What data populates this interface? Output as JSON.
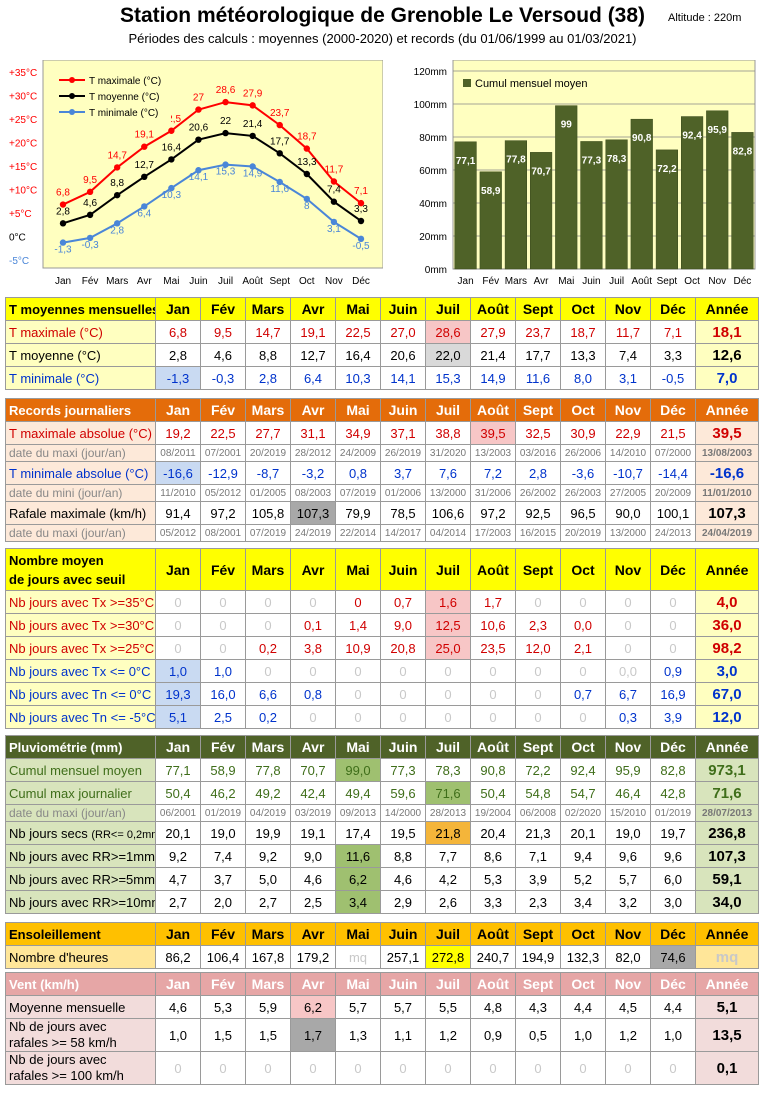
{
  "header": {
    "title": "Station météorologique de Grenoble Le Versoud (38)",
    "subtitle": "Périodes des calculs : moyennes (2000-2020) et records (du 01/06/1999 au 01/03/2021)",
    "altitude": "Altitude : 220m"
  },
  "months": [
    "Jan",
    "Fév",
    "Mars",
    "Avr",
    "Mai",
    "Juin",
    "Juil",
    "Août",
    "Sept",
    "Oct",
    "Nov",
    "Déc"
  ],
  "year_label": "Année",
  "chart_data": [
    {
      "type": "line",
      "categories": [
        "Jan",
        "Fév",
        "Mars",
        "Avr",
        "Mai",
        "Juin",
        "Juil",
        "Août",
        "Sept",
        "Oct",
        "Nov",
        "Déc"
      ],
      "series": [
        {
          "name": "T maximale (°C)",
          "color": "#ff0000",
          "values": [
            6.8,
            9.5,
            14.7,
            19.1,
            22.5,
            27.0,
            28.6,
            27.9,
            23.7,
            18.7,
            11.7,
            7.1
          ]
        },
        {
          "name": "T moyenne (°C)",
          "color": "#000000",
          "values": [
            2.8,
            4.6,
            8.8,
            12.7,
            16.4,
            20.6,
            22.0,
            21.4,
            17.7,
            13.3,
            7.4,
            3.3
          ]
        },
        {
          "name": "T minimale (°C)",
          "color": "#4a86d8",
          "values": [
            -1.3,
            -0.3,
            2.8,
            6.4,
            10.3,
            14.1,
            15.3,
            14.9,
            11.6,
            8.0,
            3.1,
            -0.5
          ]
        }
      ],
      "ylim": [
        -5,
        35
      ],
      "yticks": [
        "-5°C",
        "0°C",
        "+5°C",
        "+10°C",
        "+15°C",
        "+20°C",
        "+25°C",
        "+30°C",
        "+35°C"
      ],
      "legend": "top-left",
      "background": "#ffffc0"
    },
    {
      "type": "bar",
      "categories": [
        "Jan",
        "Fév",
        "Mars",
        "Avr",
        "Mai",
        "Juin",
        "Juil",
        "Août",
        "Sept",
        "Oct",
        "Nov",
        "Déc"
      ],
      "series": [
        {
          "name": "Cumul mensuel moyen",
          "color": "#4f6228",
          "values": [
            77.1,
            58.9,
            77.8,
            70.7,
            99.0,
            77.3,
            78.3,
            90.8,
            72.2,
            92.4,
            95.9,
            82.8
          ]
        }
      ],
      "ylim": [
        0,
        120
      ],
      "yticks": [
        "0mm",
        "20mm",
        "40mm",
        "60mm",
        "80mm",
        "100mm",
        "120mm"
      ],
      "legend": "top-left",
      "background": "#ffffc0"
    }
  ],
  "sections": [
    {
      "key": "tmoy",
      "title": "T moyennes mensuelles",
      "header_bg": "#ffff00",
      "header_color": "#000000",
      "lbl_bg": "#ffffc0",
      "ann_bg": "#ffffc0",
      "top": 297,
      "rows": [
        {
          "label": "T maximale (°C)",
          "cls": "red",
          "vals": [
            "6,8",
            "9,5",
            "14,7",
            "19,1",
            "22,5",
            "27,0",
            "28,6",
            "27,9",
            "23,7",
            "18,7",
            "11,7",
            "7,1"
          ],
          "annee": "18,1",
          "hl": {
            "6": "hl-red"
          }
        },
        {
          "label": "T moyenne (°C)",
          "cls": "",
          "vals": [
            "2,8",
            "4,6",
            "8,8",
            "12,7",
            "16,4",
            "20,6",
            "22,0",
            "21,4",
            "17,7",
            "13,3",
            "7,4",
            "3,3"
          ],
          "annee": "12,6",
          "hl": {
            "6": "hl-lgrey"
          }
        },
        {
          "label": "T minimale (°C)",
          "cls": "blue",
          "vals": [
            "-1,3",
            "-0,3",
            "2,8",
            "6,4",
            "10,3",
            "14,1",
            "15,3",
            "14,9",
            "11,6",
            "8,0",
            "3,1",
            "-0,5"
          ],
          "annee": "7,0",
          "hl": {
            "0": "hl-blue"
          }
        }
      ]
    },
    {
      "key": "records",
      "title": "Records journaliers",
      "header_bg": "#e46c0a",
      "header_color": "#ffffff",
      "lbl_bg": "#fde9d9",
      "ann_bg": "#fde9d9",
      "top": 398,
      "rows": [
        {
          "label": "T maximale absolue (°C)",
          "cls": "red",
          "vals": [
            "19,2",
            "22,5",
            "27,7",
            "31,1",
            "34,9",
            "37,1",
            "38,8",
            "39,5",
            "32,5",
            "30,9",
            "22,9",
            "21,5"
          ],
          "annee": "39,5",
          "hl": {
            "7": "hl-red"
          }
        },
        {
          "label": "date du maxi (jour/an)",
          "dates": true,
          "vals": [
            "08/2011",
            "07/2001",
            "20/2019",
            "28/2012",
            "24/2009",
            "26/2019",
            "31/2020",
            "13/2003",
            "03/2016",
            "26/2006",
            "14/2010",
            "07/2000"
          ],
          "annee": "13/08/2003"
        },
        {
          "label": "T minimale absolue (°C)",
          "cls": "blue",
          "vals": [
            "-16,6",
            "-12,9",
            "-8,7",
            "-3,2",
            "0,8",
            "3,7",
            "7,6",
            "7,2",
            "2,8",
            "-3,6",
            "-10,7",
            "-14,4"
          ],
          "annee": "-16,6",
          "hl": {
            "0": "hl-blue"
          }
        },
        {
          "label": "date du mini (jour/an)",
          "dates": true,
          "vals": [
            "11/2010",
            "05/2012",
            "01/2005",
            "08/2003",
            "07/2019",
            "01/2006",
            "13/2000",
            "31/2006",
            "26/2002",
            "26/2003",
            "27/2005",
            "20/2009"
          ],
          "annee": "11/01/2010"
        },
        {
          "label": "Rafale maximale (km/h)",
          "cls": "",
          "vals": [
            "91,4",
            "97,2",
            "105,8",
            "107,3",
            "79,9",
            "78,5",
            "106,6",
            "97,2",
            "92,5",
            "96,5",
            "90,0",
            "100,1"
          ],
          "annee": "107,3",
          "hl": {
            "3": "hl-grey"
          }
        },
        {
          "label": "date du maxi (jour/an)",
          "dates": true,
          "vals": [
            "05/2012",
            "08/2001",
            "07/2019",
            "24/2019",
            "22/2014",
            "14/2017",
            "04/2014",
            "17/2003",
            "16/2015",
            "20/2019",
            "13/2000",
            "24/2013"
          ],
          "annee": "24/04/2019"
        }
      ]
    },
    {
      "key": "seuil",
      "title": "Nombre moyen de jours avec seuil",
      "title2": "de jours avec seuil",
      "title1": "Nombre moyen",
      "header_bg": "#ffff00",
      "header_color": "#000000",
      "lbl_bg": "#ffffc0",
      "ann_bg": "#ffffc0",
      "top": 548,
      "rows": [
        {
          "label": "Nb jours avec Tx >=35°C",
          "cls": "red",
          "vals": [
            "0",
            "0",
            "0",
            "0",
            "0",
            "0,7",
            "1,6",
            "1,7",
            "0",
            "0",
            "0",
            "0"
          ],
          "annee": "4,0",
          "hl": {
            "6": "hl-red"
          },
          "zero_grey": [
            0,
            1,
            2,
            3,
            8,
            9,
            10,
            11
          ]
        },
        {
          "label": "Nb jours avec Tx >=30°C",
          "cls": "red",
          "vals": [
            "0",
            "0",
            "0",
            "0,1",
            "1,4",
            "9,0",
            "12,5",
            "10,6",
            "2,3",
            "0,0",
            "0",
            "0"
          ],
          "annee": "36,0",
          "hl": {
            "6": "hl-red"
          },
          "zero_grey": [
            0,
            1,
            2,
            10,
            11
          ]
        },
        {
          "label": "Nb jours avec Tx >=25°C",
          "cls": "red",
          "vals": [
            "0",
            "0",
            "0,2",
            "3,8",
            "10,9",
            "20,8",
            "25,0",
            "23,5",
            "12,0",
            "2,1",
            "0",
            "0"
          ],
          "annee": "98,2",
          "hl": {
            "6": "hl-red"
          },
          "zero_grey": [
            0,
            1,
            10,
            11
          ]
        },
        {
          "label": "Nb jours avec Tx <= 0°C",
          "cls": "blue",
          "vals": [
            "1,0",
            "1,0",
            "0",
            "0",
            "0",
            "0",
            "0",
            "0",
            "0",
            "0",
            "0,0",
            "0,9"
          ],
          "annee": "3,0",
          "hl": {
            "0": "hl-blue"
          },
          "zero_grey": [
            2,
            3,
            4,
            5,
            6,
            7,
            8,
            9,
            10
          ]
        },
        {
          "label": "Nb jours avec Tn <= 0°C",
          "cls": "blue",
          "vals": [
            "19,3",
            "16,0",
            "6,6",
            "0,8",
            "0",
            "0",
            "0",
            "0",
            "0",
            "0,7",
            "6,7",
            "16,9"
          ],
          "annee": "67,0",
          "hl": {
            "0": "hl-blue"
          },
          "zero_grey": [
            4,
            5,
            6,
            7,
            8
          ]
        },
        {
          "label": "Nb jours avec Tn <= -5°C",
          "cls": "blue",
          "vals": [
            "5,1",
            "2,5",
            "0,2",
            "0",
            "0",
            "0",
            "0",
            "0",
            "0",
            "0",
            "0,3",
            "3,9"
          ],
          "annee": "12,0",
          "hl": {
            "0": "hl-blue"
          },
          "zero_grey": [
            3,
            4,
            5,
            6,
            7,
            8,
            9
          ]
        }
      ]
    },
    {
      "key": "pluvio",
      "title": "Pluviométrie (mm)",
      "header_bg": "#4f6228",
      "header_color": "#ffffff",
      "lbl_bg": "#d8e4bc",
      "ann_bg": "#d8e4bc",
      "top": 735,
      "rows": [
        {
          "label": "Cumul mensuel moyen",
          "cls": "green",
          "vals": [
            "77,1",
            "58,9",
            "77,8",
            "70,7",
            "99,0",
            "77,3",
            "78,3",
            "90,8",
            "72,2",
            "92,4",
            "95,9",
            "82,8"
          ],
          "annee": "973,1",
          "hl": {
            "4": "hl-green"
          }
        },
        {
          "label": "Cumul max journalier",
          "cls": "green",
          "vals": [
            "50,4",
            "46,2",
            "49,2",
            "42,4",
            "49,4",
            "59,6",
            "71,6",
            "50,4",
            "54,8",
            "54,7",
            "46,4",
            "42,8"
          ],
          "annee": "71,6",
          "hl": {
            "6": "hl-green"
          }
        },
        {
          "label": "date du maxi (jour/an)",
          "dates": true,
          "vals": [
            "06/2001",
            "01/2019",
            "04/2019",
            "03/2019",
            "09/2013",
            "14/2000",
            "28/2013",
            "19/2004",
            "06/2008",
            "02/2020",
            "15/2010",
            "01/2019"
          ],
          "annee": "28/07/2013"
        },
        {
          "label": "Nb jours secs",
          "label_small": "(RR<= 0,2mm)",
          "cls": "",
          "vals": [
            "20,1",
            "19,0",
            "19,9",
            "19,1",
            "17,4",
            "19,5",
            "21,8",
            "20,4",
            "21,3",
            "20,1",
            "19,0",
            "19,7"
          ],
          "annee": "236,8",
          "hl": {
            "6": "hl-orange"
          }
        },
        {
          "label": "Nb jours avec RR>=1mm",
          "cls": "",
          "vals": [
            "9,2",
            "7,4",
            "9,2",
            "9,0",
            "11,6",
            "8,8",
            "7,7",
            "8,6",
            "7,1",
            "9,4",
            "9,6",
            "9,6"
          ],
          "annee": "107,3",
          "hl": {
            "4": "hl-green"
          }
        },
        {
          "label": "Nb jours avec RR>=5mm",
          "cls": "",
          "vals": [
            "4,7",
            "3,7",
            "5,0",
            "4,6",
            "6,2",
            "4,6",
            "4,2",
            "5,3",
            "3,9",
            "5,2",
            "5,7",
            "6,0"
          ],
          "annee": "59,1",
          "hl": {
            "4": "hl-green"
          }
        },
        {
          "label": "Nb jours avec RR>=10mm",
          "cls": "",
          "vals": [
            "2,7",
            "2,0",
            "2,7",
            "2,5",
            "3,4",
            "2,9",
            "2,6",
            "3,3",
            "2,3",
            "3,4",
            "3,2",
            "3,0"
          ],
          "annee": "34,0",
          "hl": {
            "4": "hl-green"
          }
        }
      ]
    },
    {
      "key": "soleil",
      "title": "Ensoleillement",
      "header_bg": "#ffc000",
      "header_color": "#000000",
      "lbl_bg": "#ffe699",
      "ann_bg": "#ffe699",
      "top": 922,
      "rows": [
        {
          "label": "Nombre d'heures",
          "cls": "",
          "vals": [
            "86,2",
            "106,4",
            "167,8",
            "179,2",
            "mq",
            "257,1",
            "272,8",
            "240,7",
            "194,9",
            "132,3",
            "82,0",
            "74,6"
          ],
          "annee": "mq",
          "hl": {
            "6": "hl-yellow",
            "11": "hl-grey"
          },
          "mq_grey": true
        }
      ]
    },
    {
      "key": "vent",
      "title": "Vent (km/h)",
      "header_bg": "#e6a6a6",
      "header_color": "#ffffff",
      "lbl_bg": "#f2dcdb",
      "ann_bg": "#f2dcdb",
      "top": 972,
      "rows": [
        {
          "label": "Moyenne mensuelle",
          "cls": "",
          "vals": [
            "4,6",
            "5,3",
            "5,9",
            "6,2",
            "5,7",
            "5,7",
            "5,5",
            "4,8",
            "4,3",
            "4,4",
            "4,5",
            "4,4"
          ],
          "annee": "5,1",
          "hl": {
            "3": "hl-red"
          }
        },
        {
          "label": "Nb de jours avec",
          "label2": "rafales >= 58 km/h",
          "tall": true,
          "cls": "",
          "vals": [
            "1,0",
            "1,5",
            "1,5",
            "1,7",
            "1,3",
            "1,1",
            "1,2",
            "0,9",
            "0,5",
            "1,0",
            "1,2",
            "1,0"
          ],
          "annee": "13,5",
          "hl": {
            "3": "hl-grey"
          }
        },
        {
          "label": "Nb de jours avec",
          "label2": "rafales >= 100 km/h",
          "tall": true,
          "cls": "",
          "vals": [
            "0",
            "0",
            "0",
            "0",
            "0",
            "0",
            "0",
            "0",
            "0",
            "0",
            "0",
            "0"
          ],
          "annee": "0,1",
          "zero_grey": [
            0,
            1,
            2,
            3,
            4,
            5,
            6,
            7,
            8,
            9,
            10,
            11
          ]
        }
      ]
    }
  ]
}
